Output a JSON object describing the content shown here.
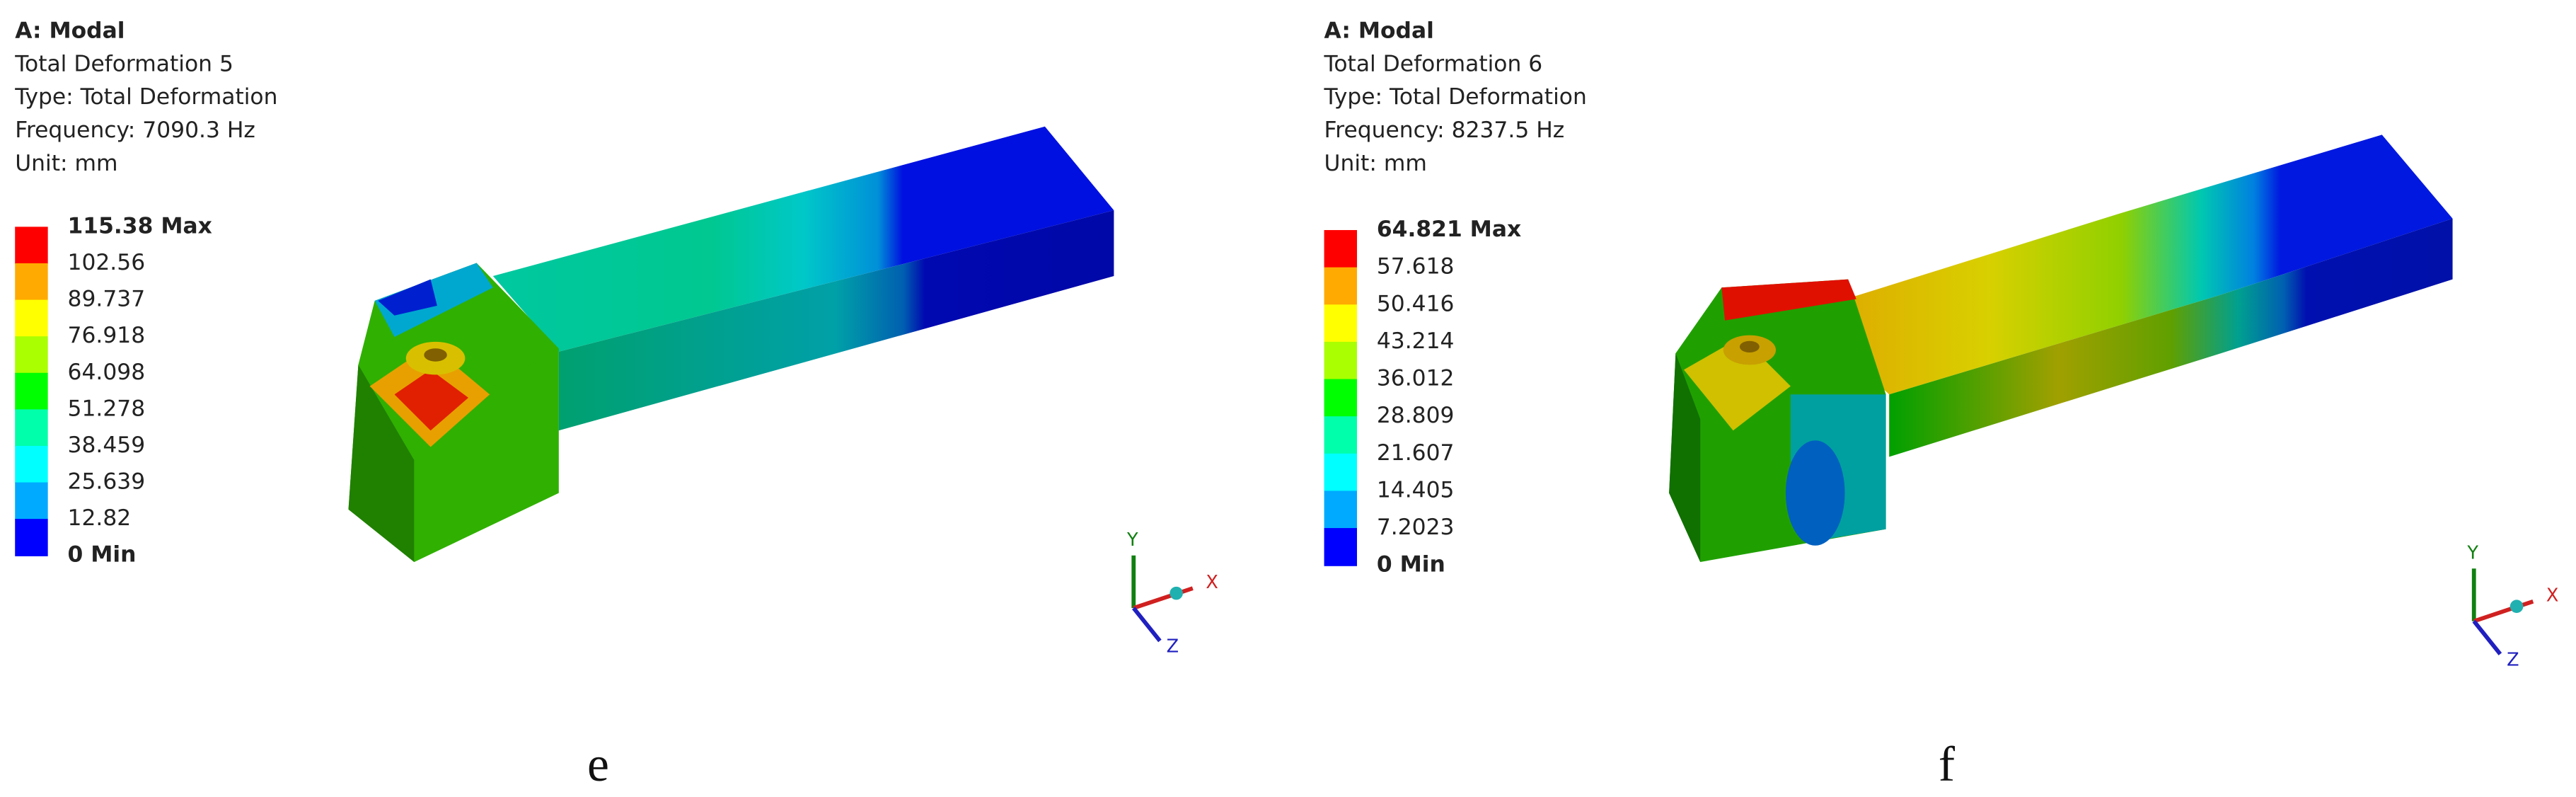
{
  "panels": [
    {
      "header": [
        "A: Modal",
        "Total Deformation 5",
        "Type: Total Deformation",
        "Frequency: 7090.3 Hz",
        "Unit: mm"
      ],
      "legend": [
        "115.38 Max",
        "102.56",
        "89.737",
        "76.918",
        "64.098",
        "51.278",
        "38.459",
        "25.639",
        "12.82",
        "0 Min"
      ],
      "axes": [
        "X",
        "Y",
        "Z"
      ],
      "caption": "e"
    },
    {
      "header": [
        "A: Modal",
        "Total Deformation 6",
        "Type: Total Deformation",
        "Frequency: 8237.5 Hz",
        "Unit: mm"
      ],
      "legend": [
        "64.821 Max",
        "57.618",
        "50.416",
        "43.214",
        "36.012",
        "28.809",
        "21.607",
        "14.405",
        "7.2023",
        "0 Min"
      ],
      "axes": [
        "X",
        "Y",
        "Z"
      ],
      "caption": "f"
    }
  ]
}
